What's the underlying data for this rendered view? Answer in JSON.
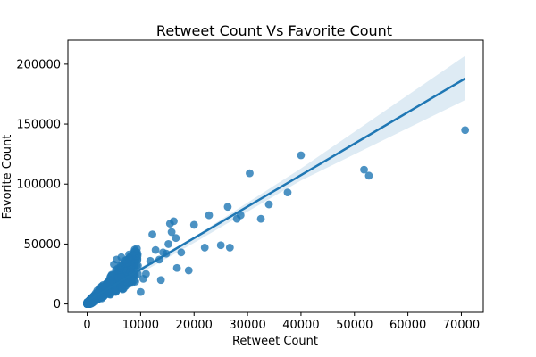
{
  "chart_data": {
    "type": "scatter",
    "title": "Retweet Count Vs Favorite Count",
    "xlabel": "Retweet Count",
    "ylabel": "Favorite Count",
    "xlim": [
      -3600,
      74100
    ],
    "ylim": [
      -7000,
      220000
    ],
    "xticks": [
      0,
      10000,
      20000,
      30000,
      40000,
      50000,
      60000,
      70000
    ],
    "yticks": [
      0,
      50000,
      100000,
      150000,
      200000
    ],
    "grid": false,
    "legend": "none",
    "colors": {
      "points": "#1f77b4",
      "line": "#1f77b4",
      "band": "#1f77b4"
    },
    "regression": {
      "line": [
        [
          0,
          2500
        ],
        [
          70700,
          188000
        ]
      ],
      "ci_upper": [
        [
          0,
          5000
        ],
        [
          20000,
          56000
        ],
        [
          40000,
          113000
        ],
        [
          70700,
          207000
        ]
      ],
      "ci_lower": [
        [
          0,
          500
        ],
        [
          20000,
          51000
        ],
        [
          40000,
          103000
        ],
        [
          70700,
          170000
        ]
      ]
    },
    "outlier_points": [
      [
        70700,
        145000
      ],
      [
        51800,
        112000
      ],
      [
        52700,
        107000
      ],
      [
        40000,
        124000
      ],
      [
        37500,
        93000
      ],
      [
        34000,
        83000
      ],
      [
        32500,
        71000
      ],
      [
        30400,
        109000
      ],
      [
        28700,
        74000
      ],
      [
        28000,
        71000
      ],
      [
        26300,
        81000
      ],
      [
        26700,
        47000
      ],
      [
        25000,
        49000
      ],
      [
        22800,
        74000
      ],
      [
        22000,
        47000
      ],
      [
        20000,
        66000
      ],
      [
        17600,
        43000
      ],
      [
        16600,
        55000
      ],
      [
        16200,
        69000
      ],
      [
        15800,
        60000
      ],
      [
        15500,
        67000
      ],
      [
        15200,
        50000
      ],
      [
        14800,
        42000
      ],
      [
        14200,
        43000
      ],
      [
        13500,
        37000
      ],
      [
        12800,
        45000
      ],
      [
        12200,
        58000
      ],
      [
        11800,
        36000
      ],
      [
        10500,
        21000
      ],
      [
        10000,
        10000
      ],
      [
        16800,
        30000
      ],
      [
        19000,
        28000
      ],
      [
        13800,
        20000
      ],
      [
        9000,
        44000
      ],
      [
        8500,
        41000
      ],
      [
        9500,
        32000
      ],
      [
        7800,
        38000
      ],
      [
        6400,
        39000
      ],
      [
        5500,
        37000
      ],
      [
        5000,
        33000
      ],
      [
        4000,
        10000
      ],
      [
        3000,
        6000
      ],
      [
        6500,
        13000
      ],
      [
        11000,
        25000
      ]
    ]
  }
}
